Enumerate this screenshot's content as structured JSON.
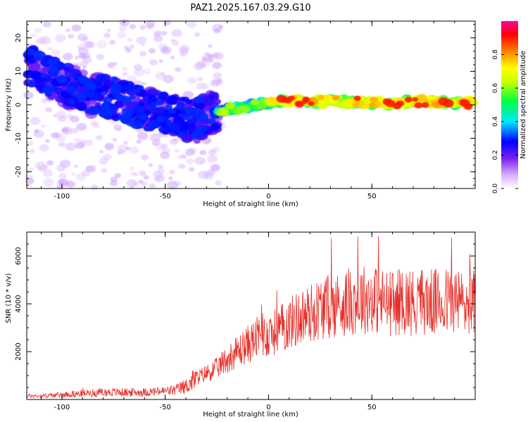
{
  "figure_title": "PAZ1.2025.167.03.29.G10",
  "chart_data": [
    {
      "type": "heatmap",
      "xlabel": "Height of straight line (km)",
      "ylabel": "Frequency (Hz)",
      "xlim": [
        -117,
        100
      ],
      "ylim": [
        -25,
        25
      ],
      "x_ticks": [
        -100,
        -50,
        0,
        50
      ],
      "x_tick_labels": [
        "-100",
        "-50",
        "0",
        "50"
      ],
      "y_ticks": [
        -20,
        -10,
        0,
        10,
        20
      ],
      "y_tick_labels": [
        "-20",
        "-10",
        "0",
        "10",
        "20"
      ],
      "colorbar": {
        "label": "Normalized spectral amplitude",
        "range": [
          0,
          1
        ],
        "ticks": [
          0.0,
          0.2,
          0.4,
          0.6,
          0.8
        ],
        "tick_labels": [
          "0.0",
          "0.2",
          "0.4",
          "0.6",
          "0.8"
        ],
        "colors": [
          "#ffffff",
          "#e6c8ff",
          "#b06cff",
          "#5a00e0",
          "#0000ff",
          "#00e8ff",
          "#00ff40",
          "#ffff00",
          "#ff8000",
          "#ff0000",
          "#ff00a0"
        ]
      },
      "ridge": {
        "x": [
          -115,
          -105,
          -95,
          -85,
          -75,
          -65,
          -55,
          -45,
          -35,
          -30,
          -25,
          -20,
          -15,
          -10,
          -5,
          0,
          10,
          20,
          30,
          40,
          50,
          60,
          70,
          80,
          90,
          100
        ],
        "y": [
          11,
          8,
          5,
          3,
          2,
          0,
          -2,
          -3,
          -5,
          -3,
          -2,
          -1.5,
          -1,
          -0.5,
          0,
          0.5,
          1.5,
          1,
          1,
          1,
          0.5,
          0.5,
          1,
          1,
          0.5,
          0.5
        ]
      }
    },
    {
      "type": "line",
      "xlabel": "Height of straight line (km)",
      "ylabel": "SNR (10 * v/v)",
      "xlim": [
        -117,
        100
      ],
      "ylim": [
        0,
        7000
      ],
      "x_ticks": [
        -100,
        -50,
        0,
        50
      ],
      "x_tick_labels": [
        "-100",
        "-50",
        "0",
        "50"
      ],
      "y_ticks": [
        2000,
        4000,
        6000
      ],
      "y_tick_labels": [
        "2000",
        "4000",
        "6000"
      ],
      "series": [
        {
          "color": "#e8302a",
          "x": [
            -117,
            -110,
            -100,
            -90,
            -80,
            -70,
            -60,
            -50,
            -45,
            -40,
            -35,
            -30,
            -25,
            -20,
            -15,
            -10,
            -5,
            0,
            5,
            10,
            15,
            20,
            25,
            30,
            35,
            40,
            45,
            50,
            55,
            60,
            65,
            70,
            75,
            80,
            85,
            90,
            95,
            100
          ],
          "y": [
            150,
            150,
            200,
            250,
            300,
            300,
            300,
            350,
            400,
            550,
            900,
            1100,
            1300,
            1700,
            2000,
            2300,
            2600,
            2700,
            2900,
            3200,
            3400,
            3600,
            3800,
            3900,
            4000,
            4100,
            4200,
            4200,
            4100,
            4000,
            4150,
            4050,
            4100,
            4050,
            4100,
            4150,
            4000,
            4100
          ]
        }
      ]
    }
  ]
}
